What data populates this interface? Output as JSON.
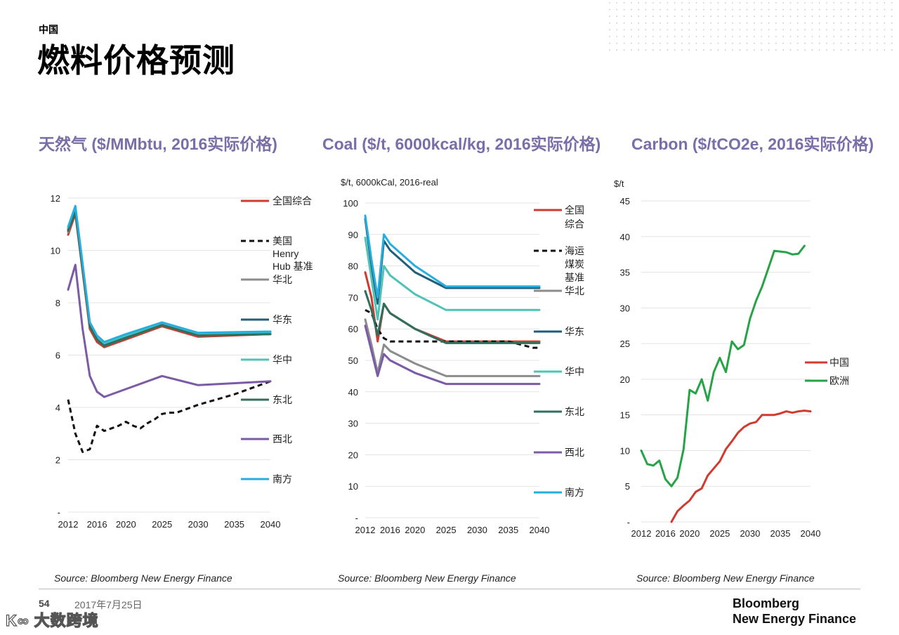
{
  "header": {
    "kicker": "中国",
    "title": "燃料价格预测"
  },
  "footer": {
    "page_number": "54",
    "date": "2017年7月25日",
    "watermark": "大数跨境",
    "brand_line1": "Bloomberg",
    "brand_line2": "New Energy Finance"
  },
  "colors": {
    "accent_title": "#7a6ea8",
    "全国综合": "#d13b2f",
    "benchmark": "#111111",
    "华北": "#8c8c8c",
    "华东": "#1f5f7a",
    "华中": "#4fc3b5",
    "东北": "#2f6f5e",
    "西北": "#7b5aa6",
    "南方": "#27aee0",
    "中国": "#d13b2f",
    "欧洲": "#27a347"
  },
  "chart_data": [
    {
      "type": "line",
      "title": "天然气 ($/MMbtu, 2016实际价格)",
      "source": "Source: Bloomberg New Energy Finance",
      "ylabel": "",
      "ylim": [
        0,
        12
      ],
      "yticks": [
        0,
        2,
        4,
        6,
        8,
        10,
        12
      ],
      "ytick_labels": [
        "-",
        "2",
        "4",
        "6",
        "8",
        "10",
        "12"
      ],
      "xlim": [
        2012,
        2040
      ],
      "xticks": [
        2012,
        2016,
        2020,
        2025,
        2030,
        2035,
        2040
      ],
      "xtick_labels": [
        "2012",
        "2016",
        "2020",
        "2025",
        "2030",
        "2035",
        "2040"
      ],
      "series": [
        {
          "name": "全国综合",
          "legend": [
            "全国综合"
          ],
          "color": "#d13b2f",
          "dash": false,
          "x": [
            2012,
            2013,
            2014,
            2015,
            2016,
            2017,
            2018,
            2020,
            2025,
            2030,
            2040
          ],
          "y": [
            10.6,
            11.4,
            9.2,
            7.0,
            6.5,
            6.3,
            6.4,
            6.6,
            7.1,
            6.7,
            6.8
          ]
        },
        {
          "name": "美国Henry Hub基准",
          "legend": [
            "美国",
            "Henry",
            "Hub 基准"
          ],
          "color": "#111111",
          "dash": true,
          "x": [
            2012,
            2013,
            2014,
            2015,
            2016,
            2017,
            2018,
            2019,
            2020,
            2021,
            2022,
            2023,
            2024,
            2025,
            2026,
            2027,
            2030,
            2035,
            2040
          ],
          "y": [
            4.3,
            3.0,
            2.3,
            2.4,
            3.3,
            3.1,
            3.2,
            3.3,
            3.45,
            3.3,
            3.2,
            3.4,
            3.55,
            3.75,
            3.8,
            3.8,
            4.1,
            4.5,
            5.0
          ]
        },
        {
          "name": "华北",
          "legend": [
            "华北"
          ],
          "color": "#8c8c8c",
          "dash": false,
          "x": [
            2012,
            2013,
            2014,
            2015,
            2016,
            2017,
            2018,
            2020,
            2025,
            2030,
            2040
          ],
          "y": [
            10.7,
            11.5,
            9.3,
            7.1,
            6.6,
            6.35,
            6.45,
            6.65,
            7.15,
            6.75,
            6.82
          ]
        },
        {
          "name": "华东",
          "legend": [
            "华东"
          ],
          "color": "#1f5f7a",
          "dash": false,
          "x": [
            2012,
            2013,
            2014,
            2015,
            2016,
            2017,
            2018,
            2020,
            2025,
            2030,
            2040
          ],
          "y": [
            10.8,
            11.55,
            9.35,
            7.15,
            6.65,
            6.4,
            6.5,
            6.7,
            7.2,
            6.8,
            6.85
          ]
        },
        {
          "name": "华中",
          "legend": [
            "华中"
          ],
          "color": "#4fc3b5",
          "dash": false,
          "x": [
            2012,
            2013,
            2014,
            2015,
            2016,
            2017,
            2018,
            2020,
            2025,
            2030,
            2040
          ],
          "y": [
            10.85,
            11.6,
            9.4,
            7.2,
            6.7,
            6.45,
            6.55,
            6.75,
            7.2,
            6.8,
            6.85
          ]
        },
        {
          "name": "东北",
          "legend": [
            "东北"
          ],
          "color": "#2f6f5e",
          "dash": false,
          "x": [
            2012,
            2013,
            2014,
            2015,
            2016,
            2017,
            2018,
            2020,
            2025,
            2030,
            2040
          ],
          "y": [
            10.75,
            11.45,
            9.3,
            7.1,
            6.6,
            6.35,
            6.45,
            6.65,
            7.15,
            6.75,
            6.8
          ]
        },
        {
          "name": "西北",
          "legend": [
            "西北"
          ],
          "color": "#7b5aa6",
          "dash": false,
          "x": [
            2012,
            2013,
            2014,
            2015,
            2016,
            2017,
            2018,
            2020,
            2025,
            2030,
            2040
          ],
          "y": [
            8.5,
            9.45,
            7.0,
            5.2,
            4.6,
            4.4,
            4.5,
            4.7,
            5.2,
            4.85,
            5.0
          ]
        },
        {
          "name": "南方",
          "legend": [
            "南方"
          ],
          "color": "#27aee0",
          "dash": false,
          "x": [
            2012,
            2013,
            2014,
            2015,
            2016,
            2017,
            2018,
            2020,
            2025,
            2030,
            2040
          ],
          "y": [
            10.9,
            11.7,
            9.5,
            7.25,
            6.75,
            6.5,
            6.6,
            6.8,
            7.25,
            6.85,
            6.9
          ]
        }
      ]
    },
    {
      "type": "line",
      "title": "Coal ($/t, 6000kcal/kg, 2016实际价格)",
      "source": "Source: Bloomberg New Energy Finance",
      "ylabel": "$/t, 6000kCal, 2016-real",
      "ylim": [
        0,
        100
      ],
      "yticks": [
        0,
        10,
        20,
        30,
        40,
        50,
        60,
        70,
        80,
        90,
        100
      ],
      "ytick_labels": [
        "-",
        "10",
        "20",
        "30",
        "40",
        "50",
        "60",
        "70",
        "80",
        "90",
        "100"
      ],
      "xlim": [
        2012,
        2040
      ],
      "xticks": [
        2012,
        2016,
        2020,
        2025,
        2030,
        2035,
        2040
      ],
      "xtick_labels": [
        "2012",
        "2016",
        "2020",
        "2025",
        "2030",
        "2035",
        "2040"
      ],
      "series": [
        {
          "name": "全国综合",
          "legend": [
            "全国",
            "综合"
          ],
          "color": "#d13b2f",
          "dash": false,
          "x": [
            2012,
            2013,
            2014,
            2015,
            2016,
            2020,
            2025,
            2030,
            2040
          ],
          "y": [
            78,
            70,
            56,
            68,
            65,
            60,
            56,
            56,
            56
          ]
        },
        {
          "name": "海运煤炭基准",
          "legend": [
            "海运",
            "煤炭",
            "基准"
          ],
          "color": "#111111",
          "dash": true,
          "x": [
            2012,
            2013,
            2014,
            2015,
            2016,
            2018,
            2020,
            2025,
            2030,
            2035,
            2039,
            2040
          ],
          "y": [
            66,
            65,
            60,
            57,
            56,
            56,
            56,
            56,
            56,
            56,
            54,
            54
          ]
        },
        {
          "name": "华北",
          "legend": [
            "华北"
          ],
          "color": "#8c8c8c",
          "dash": false,
          "x": [
            2012,
            2013,
            2014,
            2015,
            2016,
            2020,
            2025,
            2030,
            2040
          ],
          "y": [
            63,
            55,
            46,
            55,
            53,
            49,
            45,
            45,
            45
          ]
        },
        {
          "name": "华东",
          "legend": [
            "华东"
          ],
          "color": "#1f5f7a",
          "dash": false,
          "x": [
            2012,
            2013,
            2014,
            2015,
            2016,
            2020,
            2025,
            2030,
            2040
          ],
          "y": [
            95,
            80,
            68,
            88,
            85,
            78,
            73,
            73,
            73
          ]
        },
        {
          "name": "华中",
          "legend": [
            "华中"
          ],
          "color": "#4fc3b5",
          "dash": false,
          "x": [
            2012,
            2013,
            2014,
            2015,
            2016,
            2020,
            2025,
            2030,
            2040
          ],
          "y": [
            89,
            76,
            63,
            80,
            77,
            71,
            66,
            66,
            66
          ]
        },
        {
          "name": "东北",
          "legend": [
            "东北"
          ],
          "color": "#2f6f5e",
          "dash": false,
          "x": [
            2012,
            2013,
            2014,
            2015,
            2016,
            2020,
            2025,
            2030,
            2040
          ],
          "y": [
            72,
            66,
            58,
            68,
            65,
            60,
            55.5,
            55.5,
            55.5
          ]
        },
        {
          "name": "西北",
          "legend": [
            "西北"
          ],
          "color": "#7b5aa6",
          "dash": false,
          "x": [
            2012,
            2013,
            2014,
            2015,
            2016,
            2020,
            2025,
            2030,
            2040
          ],
          "y": [
            61,
            53,
            45,
            52,
            50,
            46,
            42.5,
            42.5,
            42.5
          ]
        },
        {
          "name": "南方",
          "legend": [
            "南方"
          ],
          "color": "#27aee0",
          "dash": false,
          "x": [
            2012,
            2013,
            2014,
            2015,
            2016,
            2020,
            2025,
            2030,
            2040
          ],
          "y": [
            96,
            82,
            70,
            90,
            87,
            80,
            73.5,
            73.5,
            73.5
          ]
        }
      ]
    },
    {
      "type": "line",
      "title": "Carbon ($/tCO2e, 2016实际价格)",
      "source": "Source: Bloomberg New Energy Finance",
      "ylabel": "$/t",
      "ylim": [
        0,
        45
      ],
      "yticks": [
        0,
        5,
        10,
        15,
        20,
        25,
        30,
        35,
        40,
        45
      ],
      "ytick_labels": [
        "-",
        "5",
        "10",
        "15",
        "20",
        "25",
        "30",
        "35",
        "40",
        "45"
      ],
      "xlim": [
        2012,
        2040
      ],
      "xticks": [
        2012,
        2016,
        2020,
        2025,
        2030,
        2035,
        2040
      ],
      "xtick_labels": [
        "2012",
        "2016",
        "2020",
        "2025",
        "2030",
        "2035",
        "2040"
      ],
      "series": [
        {
          "name": "中国",
          "legend": [
            "中国"
          ],
          "color": "#d13b2f",
          "dash": false,
          "x": [
            2017,
            2018,
            2019,
            2020,
            2021,
            2022,
            2023,
            2024,
            2025,
            2026,
            2027,
            2028,
            2029,
            2030,
            2031,
            2032,
            2033,
            2034,
            2035,
            2036,
            2037,
            2038,
            2039,
            2040
          ],
          "y": [
            0,
            1.5,
            2.3,
            3.0,
            4.2,
            4.7,
            6.5,
            7.5,
            8.5,
            10.2,
            11.3,
            12.5,
            13.3,
            13.8,
            14.0,
            15.0,
            15.0,
            15.0,
            15.2,
            15.5,
            15.3,
            15.5,
            15.6,
            15.5
          ]
        },
        {
          "name": "欧洲",
          "legend": [
            "欧洲"
          ],
          "color": "#27a347",
          "dash": false,
          "x": [
            2012,
            2013,
            2014,
            2015,
            2016,
            2017,
            2018,
            2019,
            2020,
            2021,
            2022,
            2023,
            2024,
            2025,
            2026,
            2027,
            2028,
            2029,
            2030,
            2031,
            2032,
            2033,
            2034,
            2035,
            2036,
            2037,
            2038,
            2039
          ],
          "y": [
            10,
            8.1,
            7.9,
            8.6,
            6.0,
            5.0,
            6.2,
            10.2,
            18.5,
            18.0,
            20.0,
            17.0,
            21.0,
            23.0,
            21.0,
            25.3,
            24.2,
            24.8,
            28.5,
            31.0,
            33.0,
            35.5,
            38.0,
            37.9,
            37.8,
            37.5,
            37.6,
            38.7
          ]
        }
      ]
    }
  ]
}
